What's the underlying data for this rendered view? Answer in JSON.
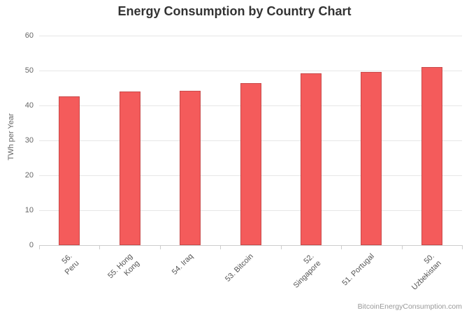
{
  "chart_data": {
    "type": "bar",
    "title": "Energy Consumption by Country Chart",
    "ylabel": "TWh per Year",
    "xlabel": "",
    "categories": [
      "56. Peru",
      "55. Hong Kong",
      "54. Iraq",
      "53. Bitcoin",
      "52. Singapore",
      "51. Portugal",
      "50. Uzbekistan"
    ],
    "tick_labels": [
      "56. Peru",
      "55. Hong\nKong",
      "54. Iraq",
      "53. Bitcoin",
      "52.\nSingapore",
      "51. Portugal",
      "50.\nUzbekistan"
    ],
    "values": [
      42.7,
      44.0,
      44.2,
      46.4,
      49.2,
      49.6,
      51.0
    ],
    "ylim": [
      0,
      60
    ],
    "yticks": [
      0,
      10,
      20,
      30,
      40,
      50,
      60
    ],
    "grid": true,
    "legend": "none",
    "colors": {
      "bar_fill": "#f45b5b",
      "bar_border": "#c94a4a",
      "gridline": "#e6e6e6",
      "axis_line": "#cccccc",
      "tick_text": "#666666",
      "title_text": "#333333",
      "credit_text": "#999999"
    },
    "credit": "BitcoinEnergyConsumption.com"
  }
}
